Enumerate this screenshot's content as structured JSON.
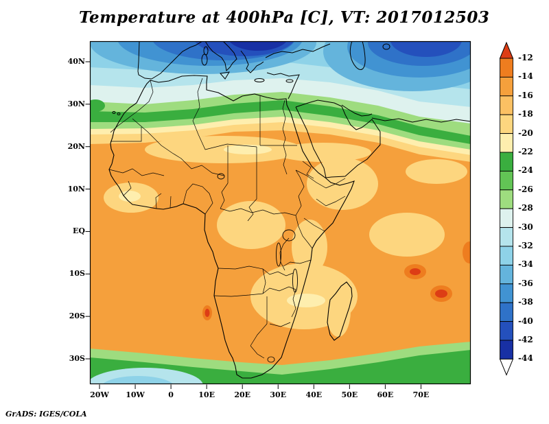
{
  "title": "Temperature at 400hPa [C], VT: 2017012503",
  "credit": "GrADS: IGES/COLA",
  "axes": {
    "lat_labels": [
      "40N",
      "30N",
      "20N",
      "10N",
      "EQ",
      "10S",
      "20S",
      "30S"
    ],
    "lon_labels": [
      "20W",
      "10W",
      "0",
      "10E",
      "20E",
      "30E",
      "40E",
      "50E",
      "60E",
      "70E"
    ]
  },
  "colorbar": {
    "tick_labels": [
      "-12",
      "-14",
      "-16",
      "-18",
      "-20",
      "-22",
      "-24",
      "-26",
      "-28",
      "-30",
      "-32",
      "-34",
      "-36",
      "-38",
      "-40",
      "-42",
      "-44"
    ],
    "top_arrow_color": "#dd3d15",
    "bottom_arrow_color": "#ffffff",
    "segment_colors": [
      "#ee7d1f",
      "#f5a03c",
      "#fbc063",
      "#fdd67f",
      "#feeeae",
      "#3aae3f",
      "#62c455",
      "#9edc7f",
      "#def2ee",
      "#b5e4ec",
      "#8ed2e8",
      "#64b4dc",
      "#4193d2",
      "#2f72c8",
      "#2450bc",
      "#1830a4"
    ]
  },
  "palette": {
    "red": "#dd3d15",
    "orangeDark": "#ee7d1f",
    "orange": "#f5a03c",
    "orangeMid": "#fbc063",
    "orangeLight": "#fdd67f",
    "yellowPale": "#feeeae",
    "green": "#3aae3f",
    "greenMid": "#62c455",
    "greenLight": "#9edc7f",
    "pale": "#def2ee",
    "cyanLight": "#b5e4ec",
    "cyanMid": "#8ed2e8",
    "blue1": "#64b4dc",
    "blue2": "#4193d2",
    "blue3": "#2f72c8",
    "blue4": "#2450bc",
    "blue5": "#1830a4"
  },
  "chart_data": {
    "type": "heatmap",
    "title": "Temperature at 400hPa [C], VT: 2017012503",
    "variable": "Temperature",
    "level_hPa": 400,
    "units": "C",
    "valid_time": "2017012503",
    "region": "Africa / Mediterranean / Arabia (approx 25W-78E, 37S-45N)",
    "x_ticks": [
      "20W",
      "10W",
      "0",
      "10E",
      "20E",
      "30E",
      "40E",
      "50E",
      "60E",
      "70E"
    ],
    "y_ticks": [
      "40N",
      "30N",
      "20N",
      "10N",
      "EQ",
      "10S",
      "20S",
      "30S"
    ],
    "contour_levels": [
      -44,
      -42,
      -40,
      -38,
      -36,
      -34,
      -32,
      -30,
      -28,
      -26,
      -24,
      -22,
      -20,
      -18,
      -16,
      -14,
      -12
    ],
    "legend_position": "right",
    "grid": false,
    "approx_zonal_values": [
      {
        "lat": "40N-45N",
        "temp_C": "-30 to -42, coldest cores over E Europe, Black Sea and Caspian"
      },
      {
        "lat": "30N-35N",
        "temp_C": "-26 to -30 (pale cyan/white band)"
      },
      {
        "lat": "24N-29N",
        "temp_C": "-22 to -26 (green band across N Africa)"
      },
      {
        "lat": "20N-23N",
        "temp_C": "-18 to -22 (yellow / light orange band)"
      },
      {
        "lat": "18N-10S",
        "temp_C": "-14 to -18 (broad orange maximum over tropical Africa)"
      },
      {
        "lat": "15S-22S",
        "temp_C": "-12 to -16 with small warm spots > -14 (SW Angola coast, Indian Ocean east of Madagascar)"
      },
      {
        "lat": "30S-36S",
        "temp_C": "-20 to -26 (green band), below -30 patch in SW corner of map"
      }
    ]
  }
}
